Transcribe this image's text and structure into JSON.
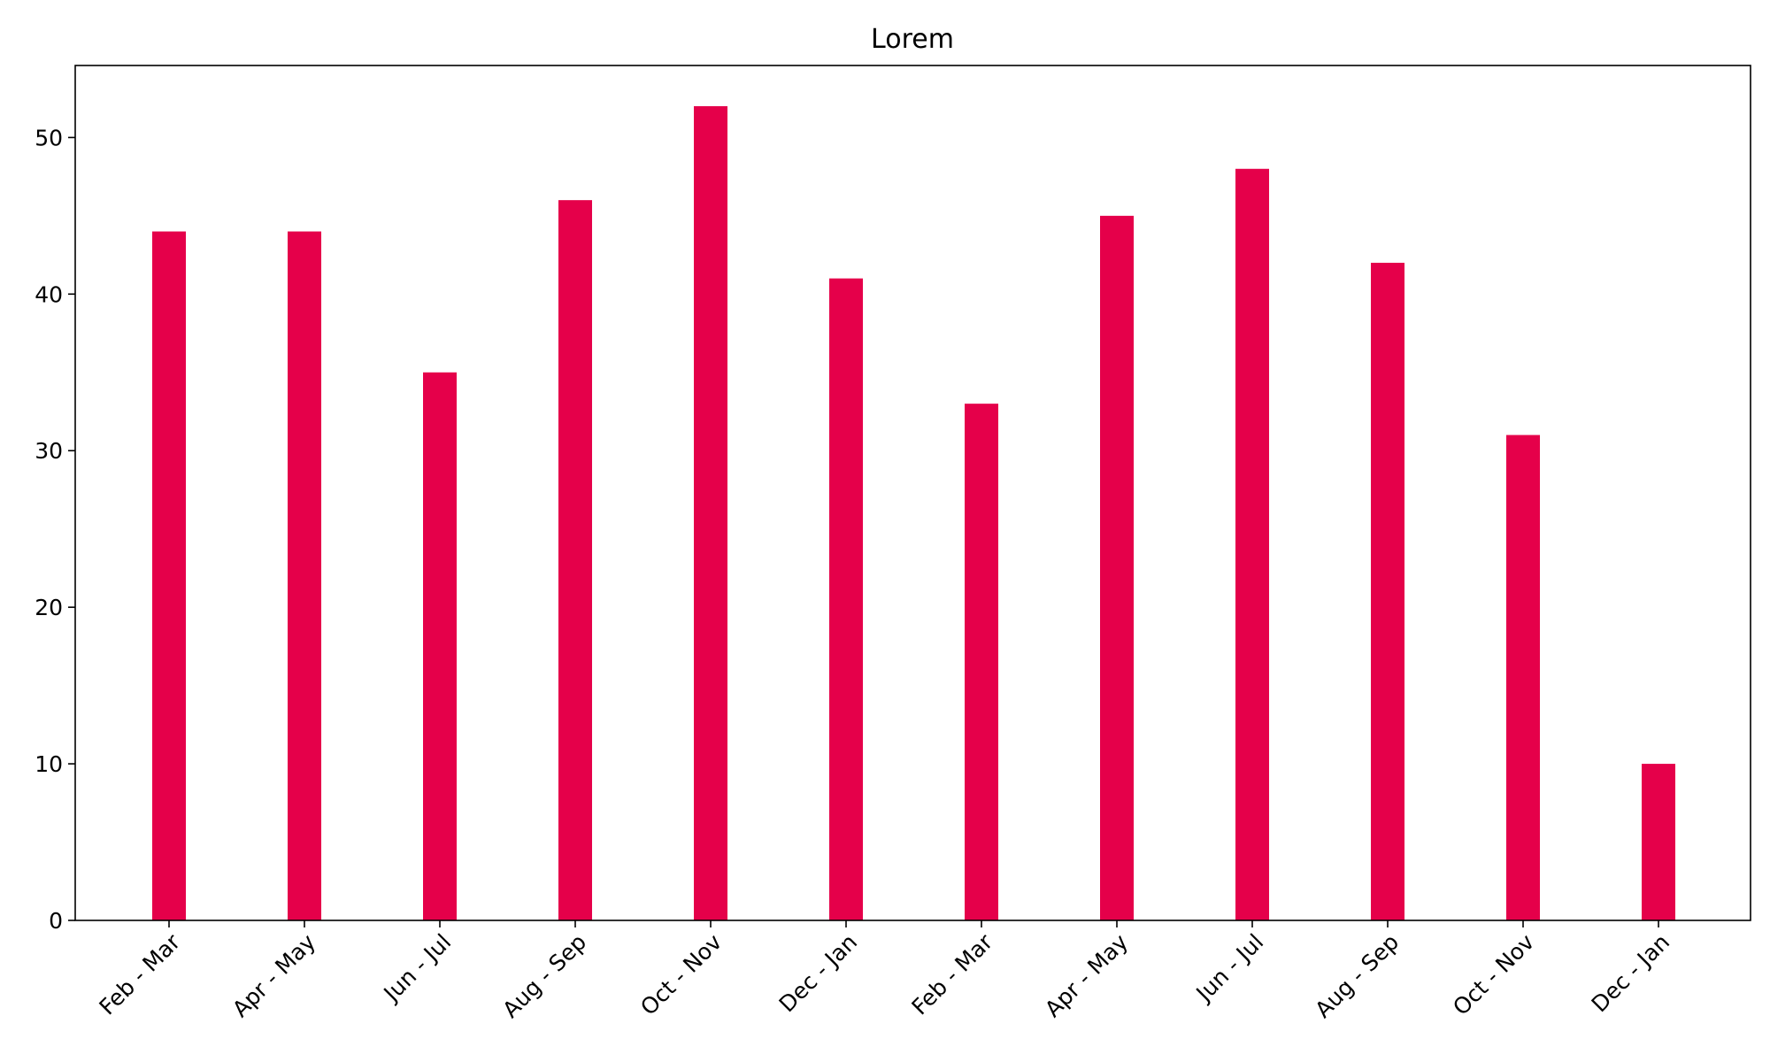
{
  "chart_data": {
    "type": "bar",
    "title": "Lorem",
    "xlabel": "",
    "ylabel": "",
    "categories": [
      "Feb - Mar",
      "Apr - May",
      "Jun - Jul",
      "Aug - Sep",
      "Oct - Nov",
      "Dec - Jan",
      "Feb - Mar",
      "Apr - May",
      "Jun - Jul",
      "Aug - Sep",
      "Oct - Nov",
      "Dec - Jan"
    ],
    "values": [
      44,
      44,
      35,
      46,
      52,
      41,
      33,
      45,
      48,
      42,
      31,
      10
    ],
    "ylim": [
      0,
      54.6
    ],
    "yticks": [
      "0",
      "10",
      "20",
      "30",
      "40",
      "50"
    ],
    "bar_color": "#e5004a",
    "grid": false,
    "legend": "none"
  }
}
